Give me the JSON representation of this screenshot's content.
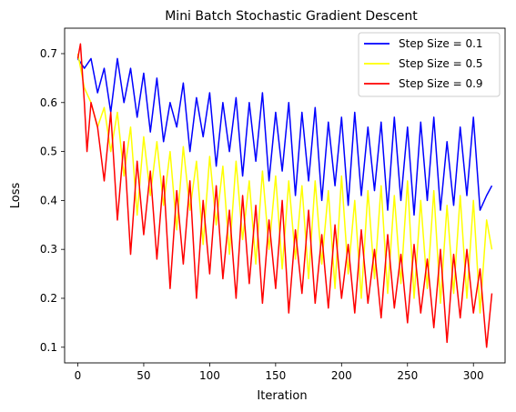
{
  "chart_data": {
    "type": "line",
    "title": "Mini Batch Stochastic Gradient Descent",
    "xlabel": "Iteration",
    "ylabel": "Loss",
    "xlim": [
      -10,
      324
    ],
    "ylim": [
      0.068,
      0.752
    ],
    "xticks": [
      0,
      50,
      100,
      150,
      200,
      250,
      300
    ],
    "yticks": [
      0.1,
      0.2,
      0.3,
      0.4,
      0.5,
      0.6,
      0.7
    ],
    "grid": false,
    "legend_position": "top-right",
    "series": [
      {
        "name": "Step Size = 0.1",
        "color": "#0000ff",
        "x": [
          0,
          5,
          10,
          15,
          20,
          25,
          30,
          35,
          40,
          45,
          50,
          55,
          60,
          65,
          70,
          75,
          80,
          85,
          90,
          95,
          100,
          105,
          110,
          115,
          120,
          125,
          130,
          135,
          140,
          145,
          150,
          155,
          160,
          165,
          170,
          175,
          180,
          185,
          190,
          195,
          200,
          205,
          210,
          215,
          220,
          225,
          230,
          235,
          240,
          245,
          250,
          255,
          260,
          265,
          270,
          275,
          280,
          285,
          290,
          295,
          300,
          305,
          310,
          314
        ],
        "y": [
          0.69,
          0.67,
          0.69,
          0.62,
          0.67,
          0.58,
          0.69,
          0.6,
          0.67,
          0.57,
          0.66,
          0.54,
          0.65,
          0.52,
          0.6,
          0.55,
          0.64,
          0.5,
          0.61,
          0.53,
          0.62,
          0.47,
          0.6,
          0.5,
          0.61,
          0.45,
          0.6,
          0.48,
          0.62,
          0.44,
          0.58,
          0.46,
          0.6,
          0.41,
          0.58,
          0.44,
          0.59,
          0.4,
          0.56,
          0.43,
          0.57,
          0.39,
          0.58,
          0.41,
          0.55,
          0.42,
          0.56,
          0.38,
          0.57,
          0.4,
          0.55,
          0.37,
          0.56,
          0.4,
          0.57,
          0.38,
          0.52,
          0.39,
          0.55,
          0.41,
          0.57,
          0.38,
          0.41,
          0.43
        ]
      },
      {
        "name": "Step Size = 0.5",
        "color": "#ffff00",
        "x": [
          0,
          5,
          10,
          15,
          20,
          25,
          30,
          35,
          40,
          45,
          50,
          55,
          60,
          65,
          70,
          75,
          80,
          85,
          90,
          95,
          100,
          105,
          110,
          115,
          120,
          125,
          130,
          135,
          140,
          145,
          150,
          155,
          160,
          165,
          170,
          175,
          180,
          185,
          190,
          195,
          200,
          205,
          210,
          215,
          220,
          225,
          230,
          235,
          240,
          245,
          250,
          255,
          260,
          265,
          270,
          275,
          280,
          285,
          290,
          295,
          300,
          305,
          310,
          314
        ],
        "y": [
          0.7,
          0.63,
          0.6,
          0.55,
          0.59,
          0.5,
          0.58,
          0.45,
          0.55,
          0.37,
          0.53,
          0.41,
          0.52,
          0.39,
          0.5,
          0.34,
          0.51,
          0.38,
          0.48,
          0.31,
          0.49,
          0.35,
          0.47,
          0.29,
          0.48,
          0.32,
          0.44,
          0.27,
          0.46,
          0.3,
          0.45,
          0.26,
          0.44,
          0.28,
          0.43,
          0.24,
          0.44,
          0.27,
          0.42,
          0.22,
          0.45,
          0.25,
          0.4,
          0.2,
          0.42,
          0.24,
          0.43,
          0.21,
          0.41,
          0.23,
          0.44,
          0.2,
          0.4,
          0.22,
          0.42,
          0.19,
          0.39,
          0.21,
          0.41,
          0.2,
          0.4,
          0.17,
          0.36,
          0.3
        ]
      },
      {
        "name": "Step Size = 0.9",
        "color": "#ff0000",
        "x": [
          0,
          2,
          5,
          7,
          10,
          15,
          20,
          25,
          30,
          35,
          40,
          45,
          50,
          55,
          60,
          65,
          70,
          75,
          80,
          85,
          90,
          95,
          100,
          105,
          110,
          115,
          120,
          125,
          130,
          135,
          140,
          145,
          150,
          155,
          160,
          165,
          170,
          175,
          180,
          185,
          190,
          195,
          200,
          205,
          210,
          215,
          220,
          225,
          230,
          235,
          240,
          245,
          250,
          255,
          260,
          265,
          270,
          275,
          280,
          285,
          290,
          295,
          300,
          305,
          310,
          314
        ],
        "y": [
          0.69,
          0.72,
          0.6,
          0.5,
          0.6,
          0.55,
          0.44,
          0.58,
          0.36,
          0.52,
          0.29,
          0.48,
          0.33,
          0.46,
          0.28,
          0.45,
          0.22,
          0.42,
          0.27,
          0.44,
          0.2,
          0.4,
          0.25,
          0.43,
          0.24,
          0.38,
          0.2,
          0.41,
          0.23,
          0.39,
          0.19,
          0.36,
          0.22,
          0.4,
          0.17,
          0.34,
          0.21,
          0.38,
          0.19,
          0.33,
          0.18,
          0.35,
          0.2,
          0.31,
          0.17,
          0.34,
          0.19,
          0.3,
          0.16,
          0.33,
          0.18,
          0.29,
          0.15,
          0.31,
          0.17,
          0.28,
          0.14,
          0.3,
          0.11,
          0.29,
          0.16,
          0.3,
          0.17,
          0.26,
          0.1,
          0.21
        ]
      }
    ]
  }
}
